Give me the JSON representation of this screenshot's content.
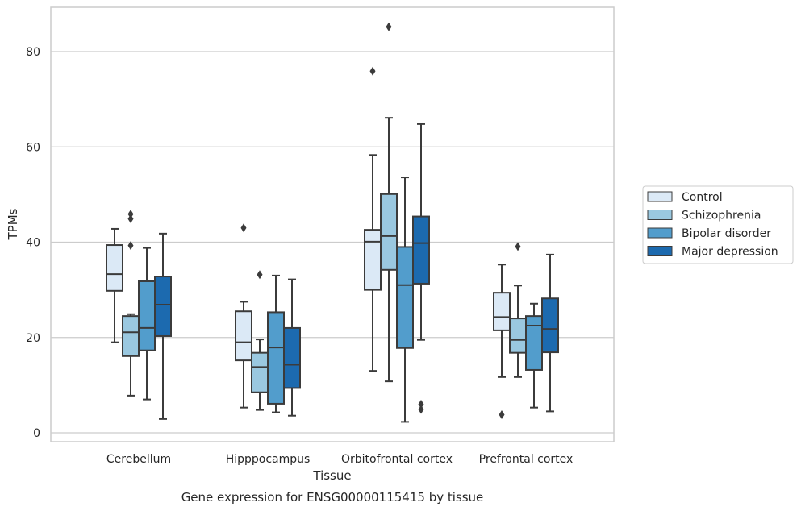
{
  "chart_data": {
    "type": "box",
    "title": "",
    "caption": "Gene expression for ENSG00000115415 by tissue",
    "xlabel": "Tissue",
    "ylabel": "TPMs",
    "ylim": [
      -1.8,
      89.5
    ],
    "yticks": [
      0,
      20,
      40,
      60,
      80
    ],
    "grid": "horizontal",
    "legend_position": "right",
    "categories": [
      "Cerebellum",
      "Hipppocampus",
      "Orbitofrontal cortex",
      "Prefrontal cortex"
    ],
    "series": [
      {
        "name": "Control",
        "color": "#dbe9f6",
        "boxes": [
          {
            "whisker_low": 19.0,
            "q1": 29.8,
            "median": 33.3,
            "q3": 39.4,
            "whisker_high": 42.8,
            "outliers": []
          },
          {
            "whisker_low": 5.3,
            "q1": 15.2,
            "median": 19.0,
            "q3": 25.5,
            "whisker_high": 27.5,
            "outliers": [
              43.0
            ]
          },
          {
            "whisker_low": 13.0,
            "q1": 30.0,
            "median": 40.1,
            "q3": 42.6,
            "whisker_high": 58.3,
            "outliers": [
              75.9
            ]
          },
          {
            "whisker_low": 11.7,
            "q1": 21.5,
            "median": 24.3,
            "q3": 29.4,
            "whisker_high": 35.3,
            "outliers": [
              3.8
            ]
          }
        ]
      },
      {
        "name": "Schizophrenia",
        "color": "#9ac8e0",
        "boxes": [
          {
            "whisker_low": 7.8,
            "q1": 16.1,
            "median": 21.1,
            "q3": 24.5,
            "whisker_high": 24.9,
            "outliers": [
              39.3,
              44.9,
              45.9
            ]
          },
          {
            "whisker_low": 4.8,
            "q1": 8.5,
            "median": 13.8,
            "q3": 16.8,
            "whisker_high": 19.6,
            "outliers": [
              33.2
            ]
          },
          {
            "whisker_low": 10.8,
            "q1": 34.2,
            "median": 41.3,
            "q3": 50.1,
            "whisker_high": 66.1,
            "outliers": [
              85.2
            ]
          },
          {
            "whisker_low": 11.7,
            "q1": 16.8,
            "median": 19.5,
            "q3": 24.0,
            "whisker_high": 30.9,
            "outliers": [
              39.1
            ]
          }
        ]
      },
      {
        "name": "Bipolar disorder",
        "color": "#529dcc",
        "boxes": [
          {
            "whisker_low": 7.0,
            "q1": 17.3,
            "median": 22.0,
            "q3": 31.8,
            "whisker_high": 38.8,
            "outliers": []
          },
          {
            "whisker_low": 4.3,
            "q1": 6.1,
            "median": 17.9,
            "q3": 25.3,
            "whisker_high": 33.0,
            "outliers": []
          },
          {
            "whisker_low": 2.3,
            "q1": 17.8,
            "median": 31.0,
            "q3": 39.0,
            "whisker_high": 53.6,
            "outliers": []
          },
          {
            "whisker_low": 5.3,
            "q1": 13.2,
            "median": 22.5,
            "q3": 24.5,
            "whisker_high": 27.1,
            "outliers": []
          }
        ]
      },
      {
        "name": "Major depression",
        "color": "#1c6aaf",
        "boxes": [
          {
            "whisker_low": 2.9,
            "q1": 20.3,
            "median": 26.9,
            "q3": 32.8,
            "whisker_high": 41.8,
            "outliers": []
          },
          {
            "whisker_low": 3.6,
            "q1": 9.4,
            "median": 14.3,
            "q3": 22.0,
            "whisker_high": 32.2,
            "outliers": []
          },
          {
            "whisker_low": 19.5,
            "q1": 31.3,
            "median": 39.8,
            "q3": 45.4,
            "whisker_high": 64.8,
            "outliers": [
              4.9,
              6.0
            ]
          },
          {
            "whisker_low": 4.5,
            "q1": 16.9,
            "median": 21.8,
            "q3": 28.2,
            "whisker_high": 37.4,
            "outliers": []
          }
        ]
      }
    ]
  },
  "colors": {
    "grid": "#cccccc",
    "spine": "#cccccc",
    "box_line": "#3b3b3b",
    "text": "#262626"
  }
}
